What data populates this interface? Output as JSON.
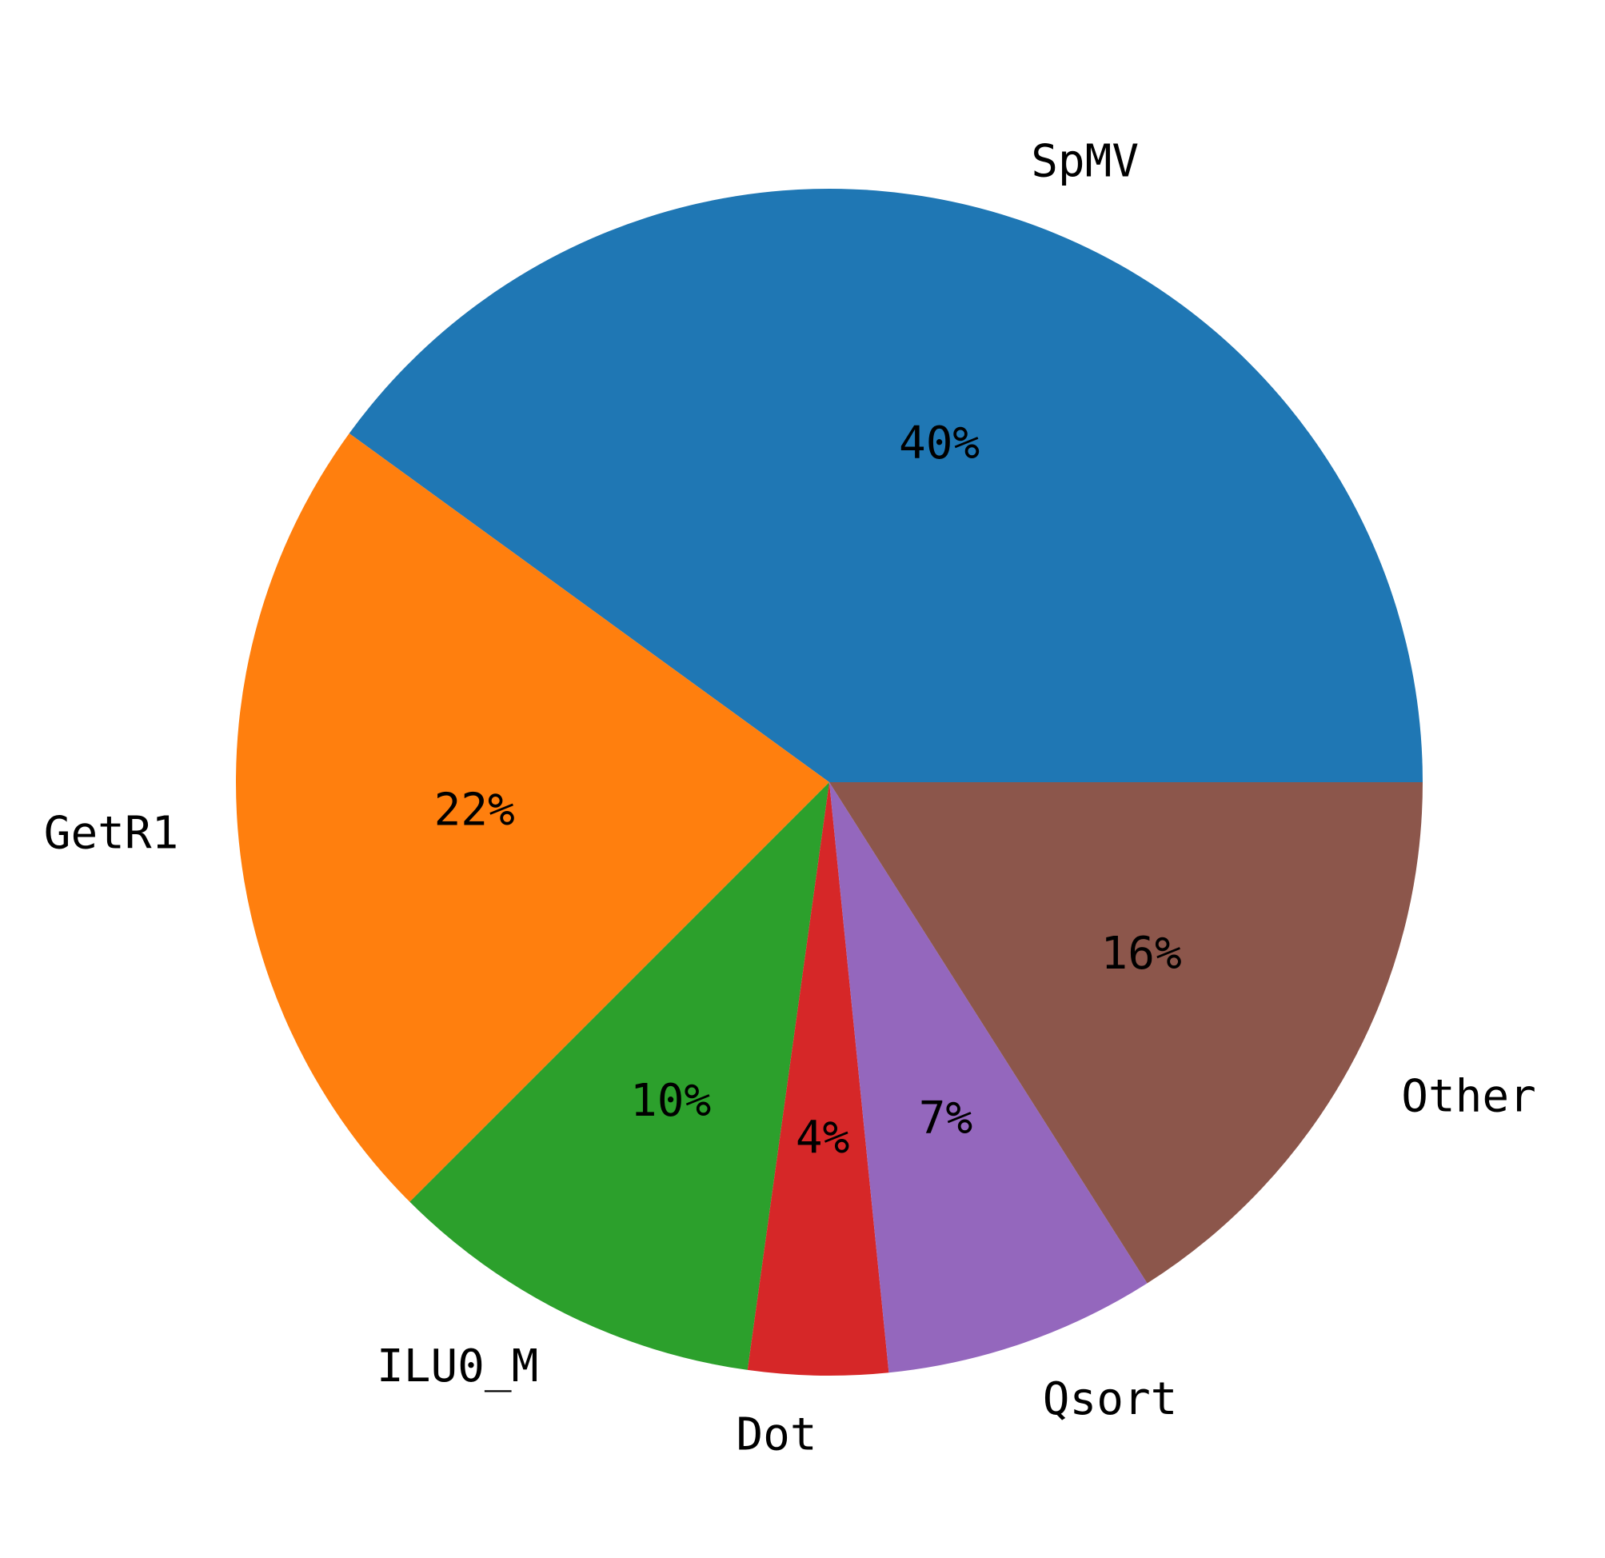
{
  "chart_data": {
    "type": "pie",
    "title": "",
    "categories": [
      "SpMV",
      "GetR1",
      "ILU0_M",
      "Dot",
      "Qsort",
      "Other"
    ],
    "values": [
      40.0,
      22.5,
      10.3,
      3.8,
      7.4,
      16.0
    ],
    "percent_labels": [
      "40%",
      "22%",
      "10%",
      "4%",
      "7%",
      "16%"
    ],
    "colors": [
      "#1f77b4",
      "#ff7f0e",
      "#2ca02c",
      "#d62728",
      "#9467bd",
      "#8c564b"
    ],
    "start_angle_deg": 0,
    "direction": "counterclockwise",
    "legend": "none"
  }
}
